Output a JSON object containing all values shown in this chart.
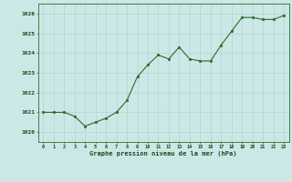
{
  "x": [
    0,
    1,
    2,
    3,
    4,
    5,
    6,
    7,
    8,
    9,
    10,
    11,
    12,
    13,
    14,
    15,
    16,
    17,
    18,
    19,
    20,
    21,
    22,
    23
  ],
  "y": [
    1021.0,
    1021.0,
    1021.0,
    1020.8,
    1020.3,
    1020.5,
    1020.7,
    1021.0,
    1021.6,
    1022.8,
    1023.4,
    1023.9,
    1023.7,
    1024.3,
    1023.7,
    1023.6,
    1023.6,
    1024.4,
    1025.1,
    1025.8,
    1025.8,
    1025.7,
    1025.7,
    1025.9
  ],
  "ylim": [
    1019.5,
    1026.5
  ],
  "yticks": [
    1020,
    1021,
    1022,
    1023,
    1024,
    1025,
    1026
  ],
  "xticks": [
    0,
    1,
    2,
    3,
    4,
    5,
    6,
    7,
    8,
    9,
    10,
    11,
    12,
    13,
    14,
    15,
    16,
    17,
    18,
    19,
    20,
    21,
    22,
    23
  ],
  "line_color": "#2d6a2d",
  "marker_color": "#2d6a2d",
  "bg_color": "#cce8e6",
  "grid_color": "#aacfcc",
  "border_color": "#2d6a2d",
  "xlabel": "Graphe pression niveau de la mer (hPa)",
  "xlabel_color": "#1a4a1a",
  "tick_color": "#1a4a1a",
  "figsize": [
    3.2,
    2.0
  ],
  "dpi": 100
}
